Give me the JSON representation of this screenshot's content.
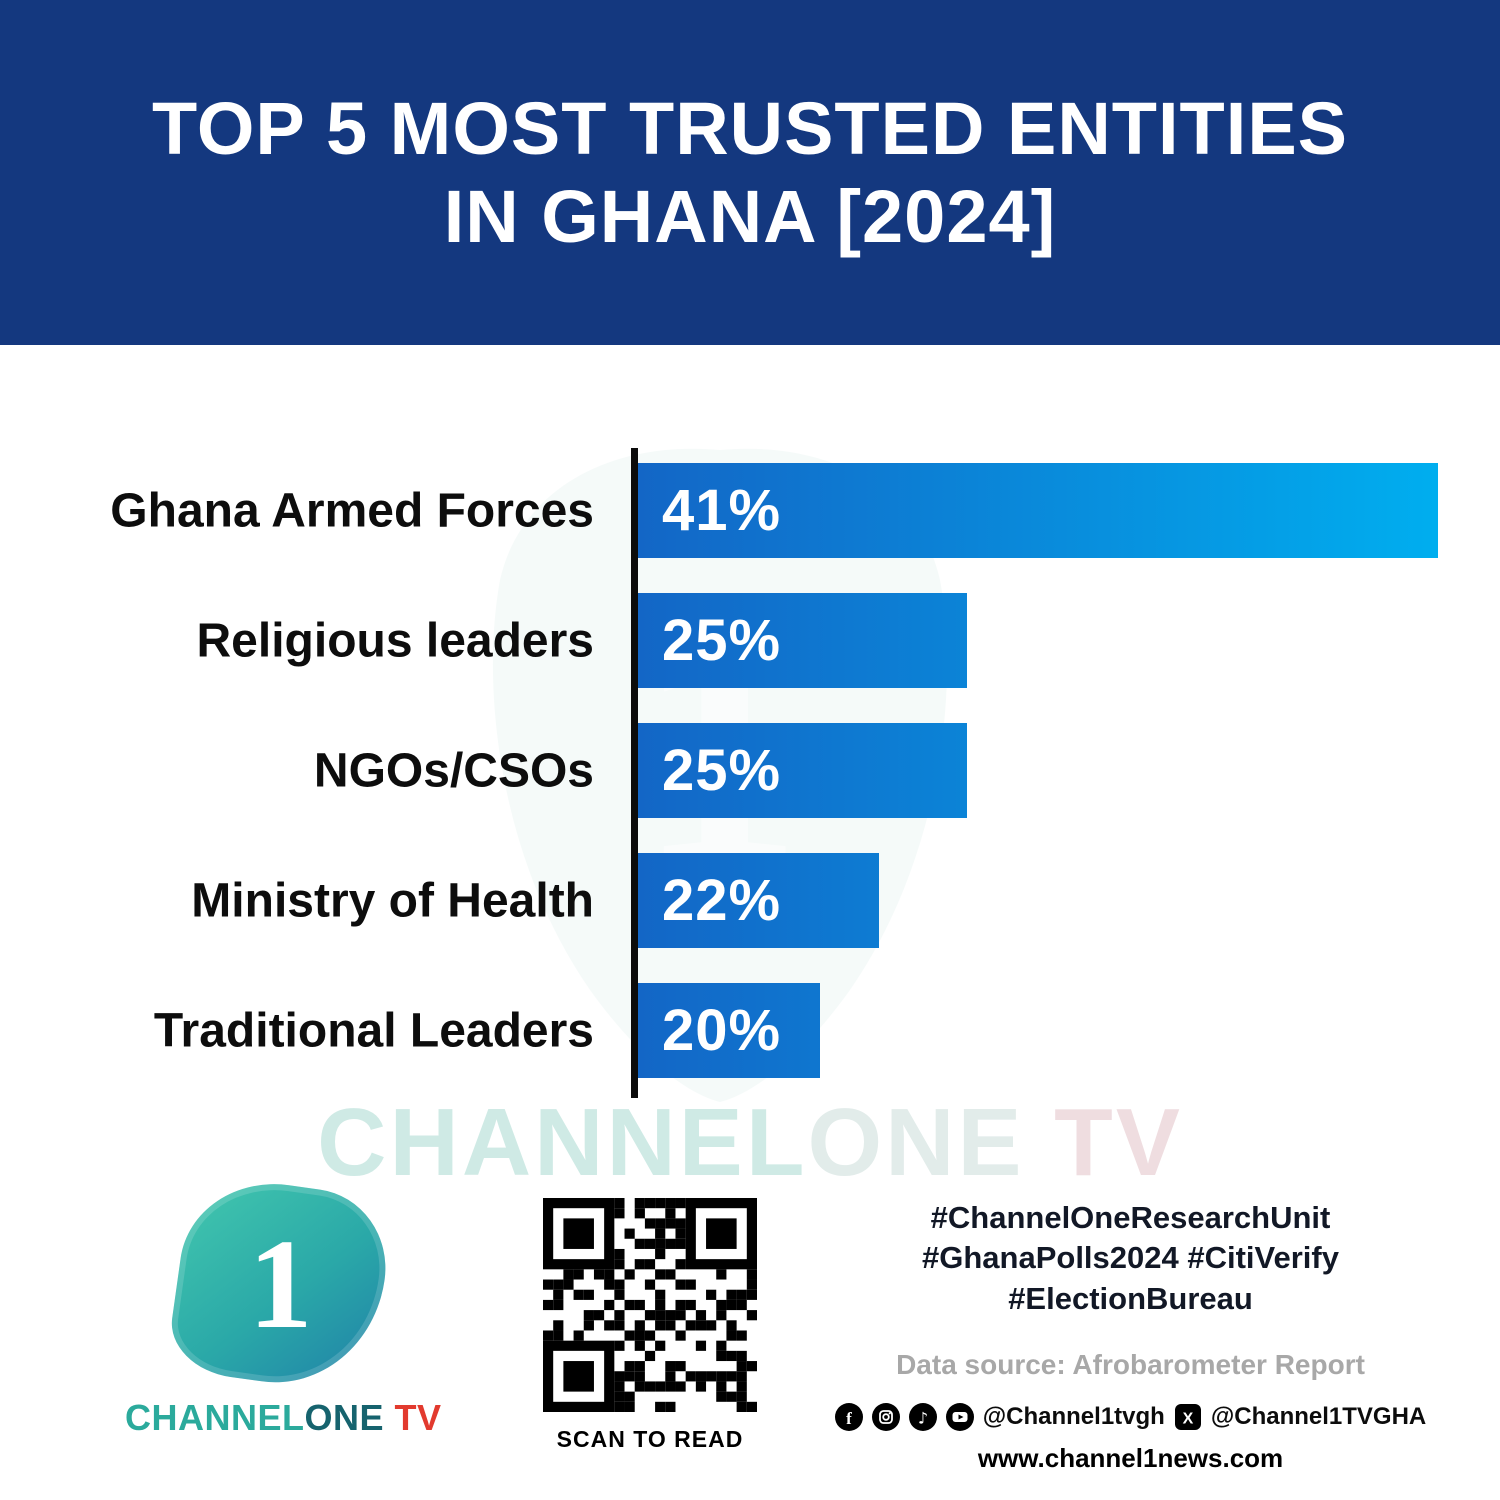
{
  "header": {
    "title_line1": "TOP 5 MOST TRUSTED ENTITIES",
    "title_line2": "IN GHANA [2024]"
  },
  "chart_data": {
    "type": "bar",
    "orientation": "horizontal",
    "title": "Top 5 Most Trusted Entities in Ghana [2024]",
    "categories": [
      "Ghana Armed Forces",
      "Religious leaders",
      "NGOs/CSOs",
      "Ministry of Health",
      "Traditional Leaders"
    ],
    "values": [
      41,
      25,
      25,
      22,
      20
    ],
    "value_labels": [
      "41%",
      "25%",
      "25%",
      "22%",
      "20%"
    ],
    "unit": "%",
    "xlim": [
      13.8,
      41
    ],
    "grid": false,
    "legend": "none",
    "bar_gradient": [
      "#1366C6",
      "#00AEEF"
    ]
  },
  "watermark": {
    "channel": "CHANNEL",
    "one": "ONE",
    "tv": " TV"
  },
  "footer": {
    "logo_numeral": "1",
    "brand_channel": "CHANNEL",
    "brand_one": "ONE",
    "brand_tv": " TV",
    "qr_caption": "SCAN TO READ",
    "hashtag_line1": "#ChannelOneResearchUnit",
    "hashtag_line2": "#GhanaPolls2024 #CitiVerify",
    "hashtag_line3": "#ElectionBureau",
    "data_source": "Data source: Afrobarometer Report",
    "social_handle_main": "@Channel1tvgh",
    "social_handle_x": "@Channel1TVGHA",
    "website": "www.channel1news.com"
  },
  "colors": {
    "header_bg": "#14387F",
    "bar_start": "#1366C6",
    "bar_end": "#00AEEF",
    "axis": "#0b0b0b",
    "brand_teal": "#2BAA9C",
    "accent_red": "#E23A2E",
    "data_source_gray": "#a8a8a8"
  }
}
